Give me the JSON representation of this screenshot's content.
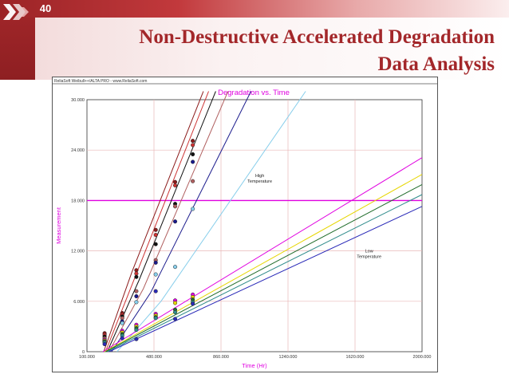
{
  "slide": {
    "page_number": "40",
    "title_line1": "Non-Destructive Accelerated Degradation",
    "title_line2": "Data Analysis",
    "logo_icon": "chevron-logo-icon"
  },
  "chart_data": {
    "type": "scatter",
    "software_caption": "ReliaSoft Weibull++/ALTA PRO - www.ReliaSoft.com",
    "title": "Degradation vs. Time",
    "xlabel": "Time (Hr)",
    "ylabel": "Measurement",
    "xlim": [
      100,
      2000
    ],
    "ylim": [
      0,
      30000
    ],
    "xticks": [
      100,
      480,
      860,
      1240,
      1620,
      2000
    ],
    "xtick_labels": [
      "100.000",
      "480.000",
      "860.000",
      "1240.000",
      "1620.000",
      "2000.000"
    ],
    "yticks": [
      0,
      6000,
      12000,
      18000,
      24000,
      30000
    ],
    "ytick_labels": [
      "0",
      "6.000",
      "12.000",
      "18.000",
      "24.000",
      "30.000"
    ],
    "grid": true,
    "threshold": {
      "value": 18000,
      "color": "#e000e0"
    },
    "annotations": [
      {
        "lines": [
          "High",
          "Temperature"
        ],
        "x": 1080,
        "y": 20800
      },
      {
        "lines": [
          "Low",
          "Temperature"
        ],
        "x": 1700,
        "y": 11800
      }
    ],
    "series": [
      {
        "group": "high",
        "color": "#8b1a1a",
        "line": [
          [
            195,
            0
          ],
          [
            355,
            9500
          ],
          [
            760,
            31000
          ]
        ],
        "points": [
          [
            200,
            2200
          ],
          [
            300,
            4600
          ],
          [
            380,
            9700
          ],
          [
            490,
            14500
          ],
          [
            600,
            20200
          ],
          [
            700,
            25100
          ]
        ]
      },
      {
        "group": "high",
        "color": "#cc3333",
        "line": [
          [
            205,
            0
          ],
          [
            375,
            9000
          ],
          [
            790,
            31000
          ]
        ],
        "points": [
          [
            200,
            2000
          ],
          [
            300,
            4400
          ],
          [
            380,
            9300
          ],
          [
            490,
            13900
          ],
          [
            600,
            19800
          ],
          [
            700,
            24600
          ]
        ]
      },
      {
        "group": "high",
        "color": "#111111",
        "line": [
          [
            215,
            0
          ],
          [
            395,
            8500
          ],
          [
            830,
            31000
          ]
        ],
        "points": [
          [
            200,
            1800
          ],
          [
            300,
            4200
          ],
          [
            380,
            8900
          ],
          [
            490,
            12800
          ],
          [
            600,
            17600
          ],
          [
            700,
            23500
          ]
        ]
      },
      {
        "group": "high",
        "color": "#b06060",
        "line": [
          [
            225,
            0
          ],
          [
            420,
            7500
          ],
          [
            900,
            31000
          ]
        ],
        "points": [
          [
            200,
            1600
          ],
          [
            300,
            4000
          ],
          [
            380,
            7200
          ],
          [
            490,
            10900
          ],
          [
            600,
            17300
          ],
          [
            700,
            20300
          ]
        ]
      },
      {
        "group": "high",
        "color": "#1a1a8c",
        "line": [
          [
            240,
            0
          ],
          [
            460,
            7000
          ],
          [
            1030,
            31000
          ]
        ],
        "points": [
          [
            200,
            1400
          ],
          [
            300,
            3600
          ],
          [
            380,
            6600
          ],
          [
            490,
            10600
          ],
          [
            600,
            15500
          ],
          [
            700,
            22600
          ]
        ]
      },
      {
        "group": "high",
        "color": "#87ceeb",
        "line": [
          [
            270,
            0
          ],
          [
            520,
            6000
          ],
          [
            1340,
            31000
          ]
        ],
        "points": [
          [
            200,
            1200
          ],
          [
            300,
            3400
          ],
          [
            380,
            5900
          ],
          [
            490,
            9200
          ],
          [
            600,
            10100
          ],
          [
            700,
            17000
          ]
        ]
      },
      {
        "group": "low",
        "color": "#e000e0",
        "line": [
          [
            190,
            0
          ],
          [
            2000,
            23100
          ]
        ],
        "points": [
          [
            200,
            1400
          ],
          [
            300,
            2500
          ],
          [
            380,
            3200
          ],
          [
            490,
            4500
          ],
          [
            600,
            6100
          ],
          [
            700,
            6800
          ]
        ]
      },
      {
        "group": "low",
        "color": "#e6d600",
        "line": [
          [
            200,
            0
          ],
          [
            2000,
            21100
          ]
        ],
        "points": [
          [
            200,
            1300
          ],
          [
            300,
            2300
          ],
          [
            380,
            3000
          ],
          [
            490,
            4300
          ],
          [
            600,
            5800
          ],
          [
            700,
            6500
          ]
        ]
      },
      {
        "group": "low",
        "color": "#1f6b2a",
        "line": [
          [
            205,
            0
          ],
          [
            2000,
            19900
          ]
        ],
        "points": [
          [
            200,
            1200
          ],
          [
            300,
            2100
          ],
          [
            380,
            2800
          ],
          [
            490,
            4100
          ],
          [
            600,
            5000
          ],
          [
            700,
            6200
          ]
        ]
      },
      {
        "group": "low",
        "color": "#2e8b8b",
        "line": [
          [
            215,
            0
          ],
          [
            2000,
            18700
          ]
        ],
        "points": [
          [
            200,
            1100
          ],
          [
            300,
            1900
          ],
          [
            380,
            2600
          ],
          [
            490,
            4000
          ],
          [
            600,
            4700
          ],
          [
            700,
            5900
          ]
        ]
      },
      {
        "group": "low",
        "color": "#2a2ab8",
        "line": [
          [
            225,
            0
          ],
          [
            2000,
            17300
          ]
        ],
        "points": [
          [
            200,
            900
          ],
          [
            300,
            1600
          ],
          [
            380,
            1500
          ],
          [
            490,
            7200
          ],
          [
            600,
            3900
          ],
          [
            700,
            5700
          ]
        ]
      }
    ]
  }
}
